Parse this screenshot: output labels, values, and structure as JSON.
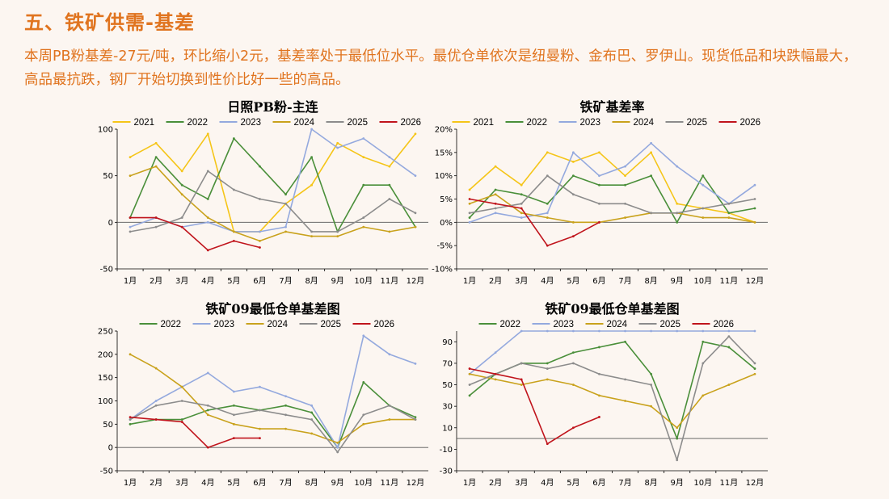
{
  "header": {
    "title": "五、铁矿供需-基差",
    "description": "本周PB粉基差-27元/吨，环比缩小2元，基差率处于最低位水平。最优仓单依次是纽曼粉、金布巴、罗伊山。现货低品和块跌幅最大，高品最抗跌，钢厂开始切换到性价比好一些的高品。"
  },
  "colors": {
    "2021": "#f5c518",
    "2022": "#4a8f3a",
    "2023": "#94a9de",
    "2024": "#c9a21c",
    "2025": "#8c8c8c",
    "2026": "#c0141c",
    "accent": "#e0741f"
  },
  "chart_data": [
    {
      "type": "line",
      "title": "日照PB粉-主连",
      "months": [
        "1月",
        "2月",
        "3月",
        "4月",
        "5月",
        "6月",
        "7月",
        "8月",
        "9月",
        "10月",
        "11月",
        "12月"
      ],
      "ylim": [
        -50,
        100
      ],
      "yticks": [
        "100",
        "50",
        "0",
        "-50"
      ],
      "legend": [
        "2021",
        "2022",
        "2023",
        "2024",
        "2025",
        "2026"
      ],
      "series": [
        {
          "name": "2021",
          "values": [
            70,
            85,
            55,
            95,
            -10,
            -10,
            20,
            40,
            85,
            70,
            60,
            95
          ]
        },
        {
          "name": "2022",
          "values": [
            5,
            70,
            40,
            25,
            90,
            60,
            30,
            70,
            -10,
            40,
            40,
            -5
          ]
        },
        {
          "name": "2023",
          "values": [
            -5,
            5,
            -5,
            0,
            -10,
            -10,
            -5,
            100,
            80,
            90,
            70,
            50
          ]
        },
        {
          "name": "2024",
          "values": [
            50,
            60,
            30,
            5,
            -10,
            -20,
            -10,
            -15,
            -15,
            -5,
            -10,
            -5
          ]
        },
        {
          "name": "2025",
          "values": [
            -10,
            -5,
            5,
            55,
            35,
            25,
            20,
            -10,
            -10,
            5,
            25,
            10
          ]
        },
        {
          "name": "2026",
          "values": [
            5,
            5,
            -5,
            -30,
            -20,
            -27
          ]
        }
      ]
    },
    {
      "type": "line",
      "title": "铁矿基差率",
      "months": [
        "1月",
        "2月",
        "3月",
        "4月",
        "5月",
        "6月",
        "7月",
        "8月",
        "9月",
        "10月",
        "11月",
        "12月"
      ],
      "ylim": [
        -10,
        20
      ],
      "yticks": [
        "20%",
        "15%",
        "10%",
        "5%",
        "0%",
        "-5%",
        "-10%"
      ],
      "legend": [
        "2021",
        "2022",
        "2023",
        "2024",
        "2025",
        "2026"
      ],
      "series": [
        {
          "name": "2021",
          "values": [
            7,
            12,
            8,
            15,
            13,
            15,
            10,
            15,
            4,
            3,
            2,
            0
          ]
        },
        {
          "name": "2022",
          "values": [
            1,
            7,
            6,
            4,
            10,
            8,
            8,
            10,
            0,
            10,
            2,
            3
          ]
        },
        {
          "name": "2023",
          "values": [
            0,
            2,
            1,
            2,
            15,
            10,
            12,
            17,
            12,
            8,
            4,
            8
          ]
        },
        {
          "name": "2024",
          "values": [
            4,
            6,
            2,
            1,
            0,
            0,
            1,
            2,
            2,
            1,
            1,
            0
          ]
        },
        {
          "name": "2025",
          "values": [
            2,
            3,
            4,
            10,
            6,
            4,
            4,
            2,
            2,
            3,
            4,
            5
          ]
        },
        {
          "name": "2026",
          "values": [
            5,
            4,
            3,
            -5,
            -3,
            0
          ]
        }
      ]
    },
    {
      "type": "line",
      "title": "铁矿09最低仓单基差图",
      "months": [
        "1月",
        "2月",
        "3月",
        "4月",
        "5月",
        "6月",
        "7月",
        "8月",
        "9月",
        "10月",
        "11月",
        "12月"
      ],
      "ylim": [
        -50,
        250
      ],
      "yticks": [
        "250",
        "200",
        "150",
        "100",
        "50",
        "0",
        "-50"
      ],
      "legend": [
        "2022",
        "2023",
        "2024",
        "2025",
        "2026"
      ],
      "series": [
        {
          "name": "2022",
          "values": [
            50,
            60,
            60,
            80,
            90,
            80,
            90,
            75,
            0,
            140,
            90,
            65
          ]
        },
        {
          "name": "2023",
          "values": [
            60,
            100,
            130,
            160,
            120,
            130,
            110,
            90,
            0,
            240,
            200,
            180
          ]
        },
        {
          "name": "2024",
          "values": [
            200,
            170,
            130,
            70,
            50,
            40,
            40,
            30,
            10,
            50,
            60,
            60
          ]
        },
        {
          "name": "2025",
          "values": [
            60,
            90,
            100,
            90,
            70,
            80,
            70,
            60,
            -10,
            70,
            90,
            60
          ]
        },
        {
          "name": "2026",
          "values": [
            65,
            60,
            55,
            0,
            20,
            20
          ]
        }
      ]
    },
    {
      "type": "line",
      "title": "铁矿09最低仓单基差图",
      "months": [
        "1月",
        "2月",
        "3月",
        "4月",
        "5月",
        "6月",
        "7月",
        "8月",
        "9月",
        "10月",
        "11月",
        "12月"
      ],
      "ylim": [
        -30,
        100
      ],
      "yticks": [
        "90",
        "70",
        "50",
        "30",
        "10",
        "-10",
        "-30"
      ],
      "legend": [
        "2022",
        "2023",
        "2024",
        "2025",
        "2026"
      ],
      "series": [
        {
          "name": "2022",
          "values": [
            40,
            60,
            70,
            70,
            80,
            85,
            90,
            60,
            0,
            90,
            85,
            65
          ]
        },
        {
          "name": "2023",
          "values": [
            60,
            80,
            100,
            100,
            100,
            100,
            100,
            100,
            100,
            100,
            100,
            100
          ]
        },
        {
          "name": "2024",
          "values": [
            60,
            55,
            50,
            55,
            50,
            40,
            35,
            30,
            10,
            40,
            50,
            60
          ]
        },
        {
          "name": "2025",
          "values": [
            50,
            60,
            70,
            65,
            70,
            60,
            55,
            50,
            -20,
            70,
            95,
            70
          ]
        },
        {
          "name": "2026",
          "values": [
            65,
            60,
            55,
            -5,
            10,
            20
          ]
        }
      ]
    }
  ]
}
